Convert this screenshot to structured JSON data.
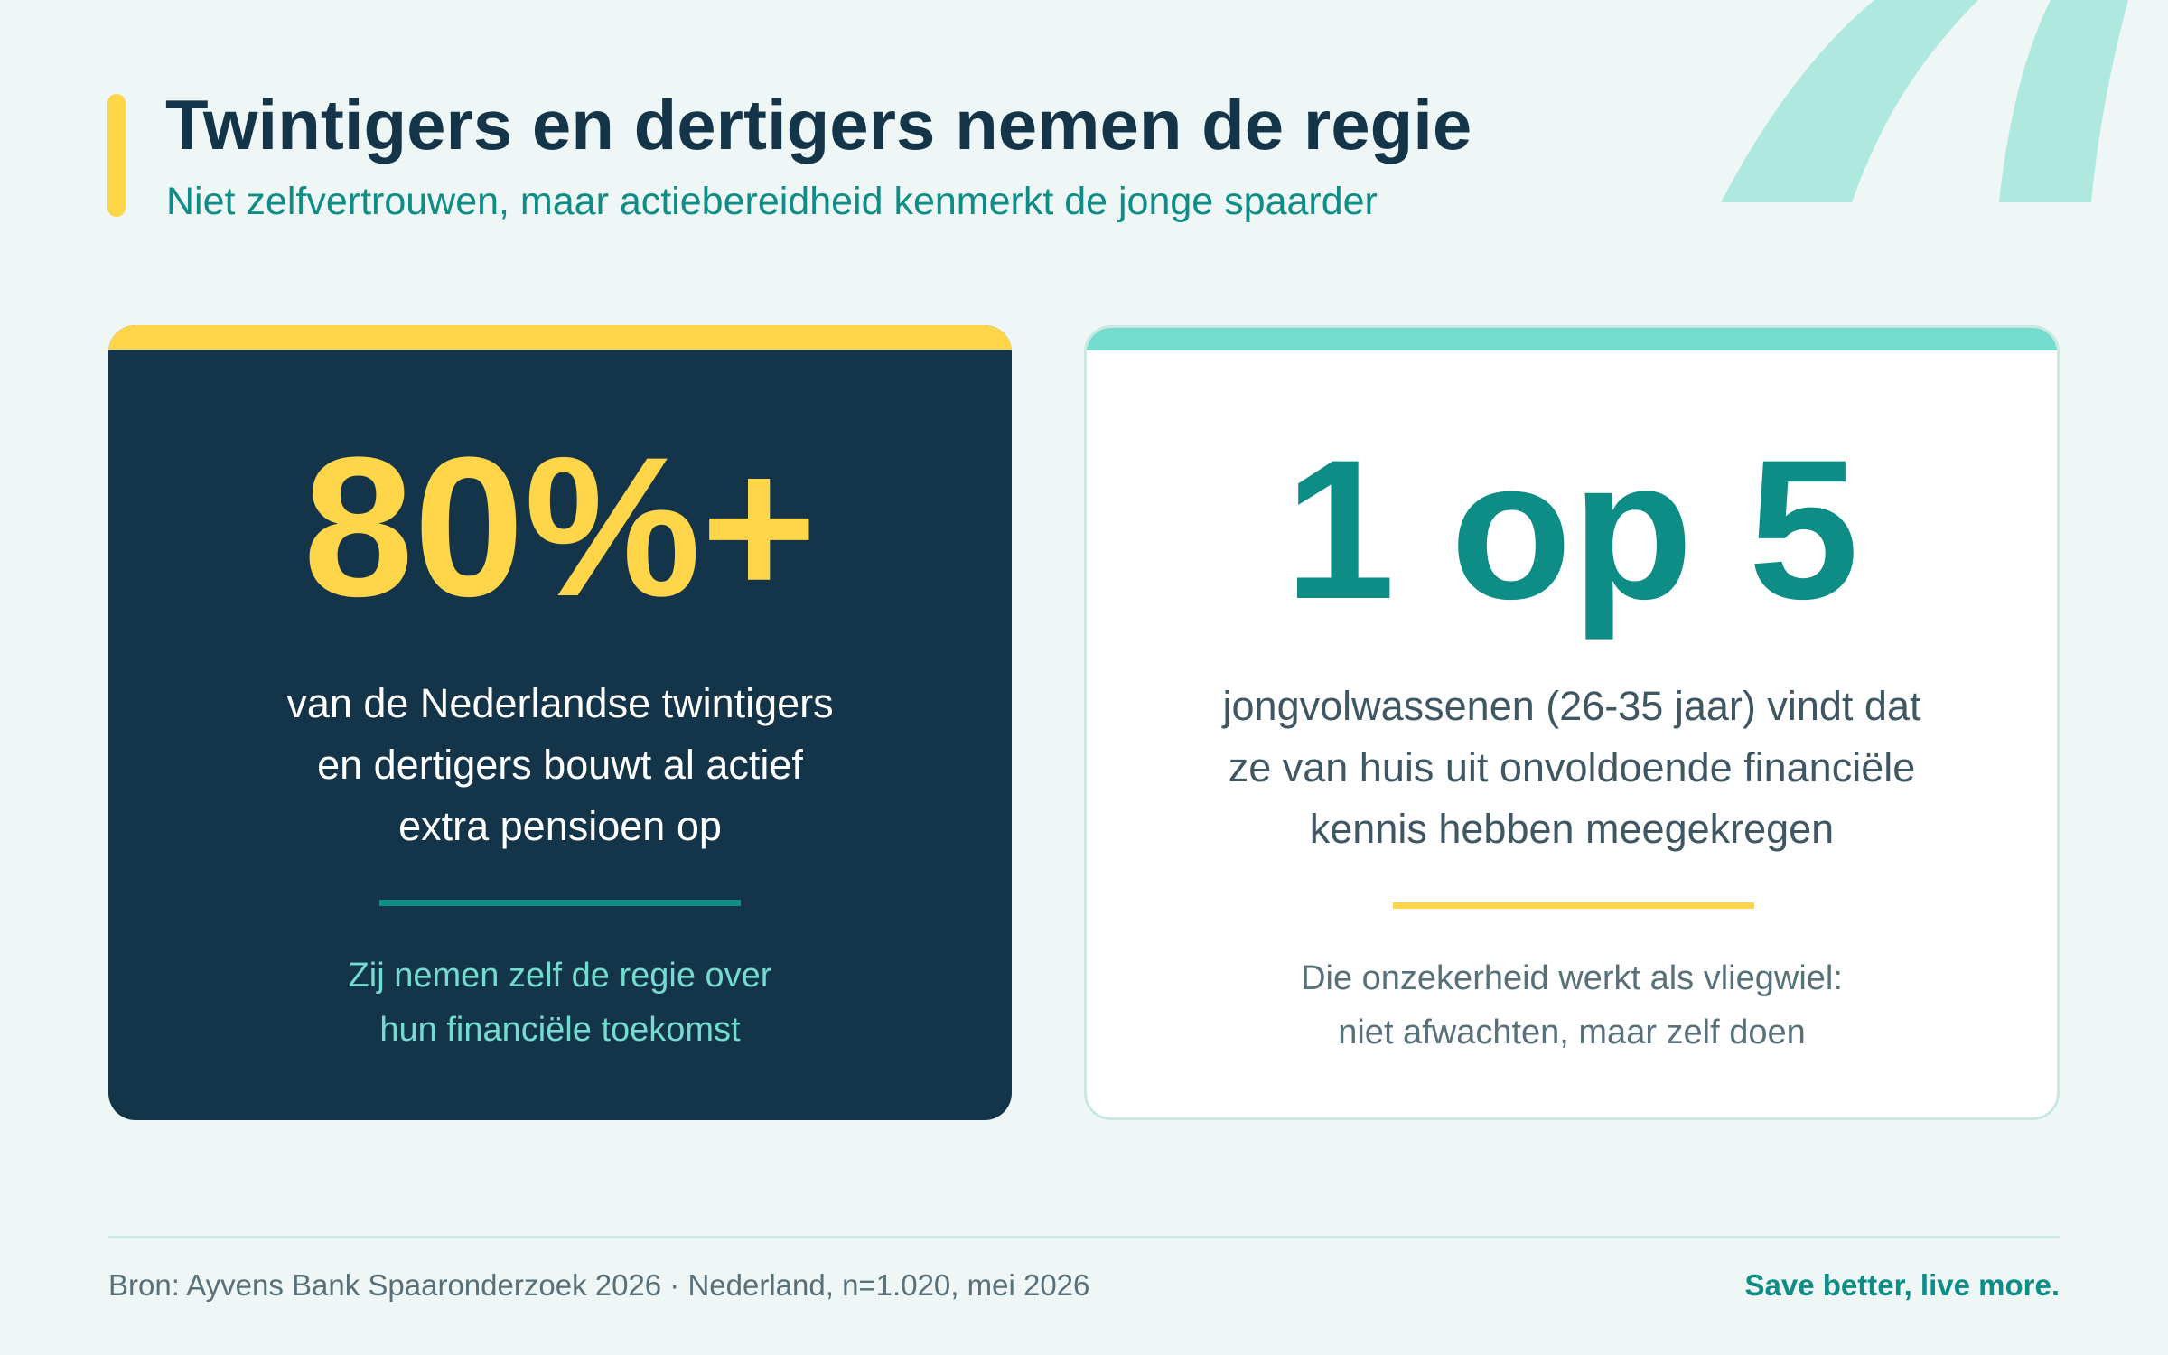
{
  "header": {
    "title": "Twintigers en dertigers nemen de regie",
    "subtitle": "Niet zelfvertrouwen, maar actiebereidheid kenmerkt de jonge spaarder"
  },
  "cards": [
    {
      "stat": "80%+",
      "description_lines": [
        "van de Nederlandse twintigers",
        "en dertigers bouwt al actief",
        "extra pensioen op"
      ],
      "note_lines": [
        "Zij nemen zelf de regie over",
        "hun financiële toekomst"
      ]
    },
    {
      "stat": "1 op 5",
      "description_lines": [
        "jongvolwassenen (26-35 jaar) vindt dat",
        "ze van huis uit onvoldoende financiële",
        "kennis hebben meegekregen"
      ],
      "note_lines": [
        "Die onzekerheid werkt als vliegwiel:",
        "niet afwachten, maar zelf doen"
      ]
    }
  ],
  "footer": {
    "source": "Bron: Ayvens Bank Spaaronderzoek 2026 · Nederland, n=1.020, mei 2026",
    "tagline": "Save better, live more."
  },
  "colors": {
    "background": "#eef7f5",
    "navy": "#143449",
    "yellow": "#ffd54a",
    "teal": "#0e8c86",
    "mint": "#74dbcf",
    "deco_mint": "#aee8df"
  },
  "icons": {
    "decoration": "quote-mark-decoration"
  }
}
